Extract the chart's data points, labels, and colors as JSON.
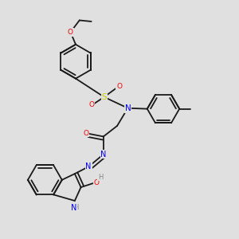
{
  "background_color": "#e0e0e0",
  "atom_colors": {
    "C": "#1a1a1a",
    "N": "#0000ee",
    "O": "#ee0000",
    "S": "#cccc00",
    "H": "#888888"
  },
  "bond_color": "#1a1a1a",
  "bond_width": 1.3,
  "figsize": [
    3.0,
    3.0
  ],
  "dpi": 100
}
